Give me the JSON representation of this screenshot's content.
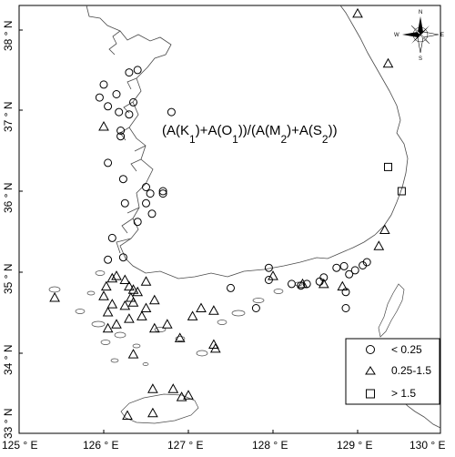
{
  "map": {
    "lon_range": [
      125,
      130
    ],
    "lat_range": [
      33,
      38.3
    ],
    "x_ticks": [
      {
        "value": 125,
        "label": "125 ° E"
      },
      {
        "value": 126,
        "label": "126 ° E"
      },
      {
        "value": 127,
        "label": "127 ° E"
      },
      {
        "value": 128,
        "label": "128 ° E"
      },
      {
        "value": 129,
        "label": "129 ° E"
      },
      {
        "value": 130,
        "label": "130 ° E"
      }
    ],
    "y_ticks": [
      {
        "value": 33,
        "label": "33 ° N"
      },
      {
        "value": 34,
        "label": "34 ° N"
      },
      {
        "value": 35,
        "label": "35 ° N"
      },
      {
        "value": 36,
        "label": "36 ° N"
      },
      {
        "value": 37,
        "label": "37 ° N"
      },
      {
        "value": 38,
        "label": "38 ° N"
      }
    ],
    "formula": {
      "p1": "(A(K",
      "s1": "1",
      "p2": ")+A(O",
      "s2": "1",
      "p3": "))/(A(M",
      "s3": "2",
      "p4": ")+A(S",
      "s4": "2",
      "p5": "))"
    },
    "compass": {
      "n": "N",
      "s": "S",
      "e": "E",
      "w": "W"
    },
    "legend": [
      {
        "symbol": "circle",
        "label": "< 0.25"
      },
      {
        "symbol": "triangle",
        "label": "0.25-1.5"
      },
      {
        "symbol": "square",
        "label": "> 1.5"
      }
    ],
    "stations": {
      "circle": [
        [
          126.3,
          37.47
        ],
        [
          126.4,
          37.5
        ],
        [
          126.0,
          37.32
        ],
        [
          125.95,
          37.16
        ],
        [
          126.05,
          37.05
        ],
        [
          126.15,
          37.2
        ],
        [
          126.35,
          37.1
        ],
        [
          126.3,
          36.95
        ],
        [
          126.18,
          36.98
        ],
        [
          126.2,
          36.75
        ],
        [
          126.2,
          36.68
        ],
        [
          126.8,
          36.98
        ],
        [
          126.05,
          36.35
        ],
        [
          126.7,
          36.0
        ],
        [
          126.7,
          35.97
        ],
        [
          126.55,
          35.97
        ],
        [
          126.5,
          36.05
        ],
        [
          126.5,
          35.85
        ],
        [
          126.4,
          35.62
        ],
        [
          126.25,
          35.85
        ],
        [
          126.05,
          35.15
        ],
        [
          126.1,
          35.42
        ],
        [
          127.95,
          35.05
        ],
        [
          127.95,
          34.9
        ],
        [
          128.22,
          34.85
        ],
        [
          128.33,
          34.83
        ],
        [
          128.4,
          34.85
        ],
        [
          128.55,
          34.88
        ],
        [
          128.6,
          34.93
        ],
        [
          128.75,
          35.05
        ],
        [
          128.84,
          35.07
        ],
        [
          128.9,
          34.97
        ],
        [
          129.06,
          35.08
        ],
        [
          129.11,
          35.12
        ],
        [
          128.97,
          35.02
        ],
        [
          128.86,
          34.75
        ],
        [
          128.86,
          34.55
        ],
        [
          127.5,
          34.8
        ],
        [
          127.8,
          34.55
        ],
        [
          126.57,
          35.72
        ],
        [
          126.23,
          35.18
        ],
        [
          126.23,
          36.15
        ]
      ],
      "triangle": [
        [
          129.0,
          38.2
        ],
        [
          129.36,
          37.58
        ],
        [
          129.32,
          35.52
        ],
        [
          129.25,
          35.32
        ],
        [
          128.0,
          34.95
        ],
        [
          128.82,
          34.82
        ],
        [
          128.6,
          34.85
        ],
        [
          128.35,
          34.85
        ],
        [
          125.42,
          34.68
        ],
        [
          126.03,
          34.82
        ],
        [
          126.0,
          34.7
        ],
        [
          126.1,
          34.92
        ],
        [
          126.15,
          34.95
        ],
        [
          126.25,
          34.9
        ],
        [
          126.3,
          34.82
        ],
        [
          126.35,
          34.78
        ],
        [
          126.32,
          34.68
        ],
        [
          126.4,
          34.75
        ],
        [
          126.5,
          34.88
        ],
        [
          126.35,
          34.62
        ],
        [
          126.25,
          34.58
        ],
        [
          126.1,
          34.6
        ],
        [
          126.05,
          34.5
        ],
        [
          126.15,
          34.35
        ],
        [
          126.05,
          34.3
        ],
        [
          126.5,
          34.55
        ],
        [
          126.6,
          34.65
        ],
        [
          126.45,
          34.45
        ],
        [
          126.3,
          34.42
        ],
        [
          126.6,
          34.3
        ],
        [
          126.75,
          34.35
        ],
        [
          126.9,
          34.18
        ],
        [
          127.05,
          34.45
        ],
        [
          127.15,
          34.55
        ],
        [
          127.3,
          34.52
        ],
        [
          127.3,
          34.1
        ],
        [
          127.32,
          34.05
        ],
        [
          126.35,
          33.98
        ],
        [
          126.58,
          33.55
        ],
        [
          126.92,
          33.45
        ],
        [
          127.0,
          33.47
        ],
        [
          126.82,
          33.55
        ],
        [
          126.28,
          33.22
        ],
        [
          126.58,
          33.25
        ],
        [
          126.0,
          36.8
        ]
      ],
      "square": [
        [
          129.36,
          36.3
        ],
        [
          129.52,
          36.0
        ]
      ]
    }
  }
}
